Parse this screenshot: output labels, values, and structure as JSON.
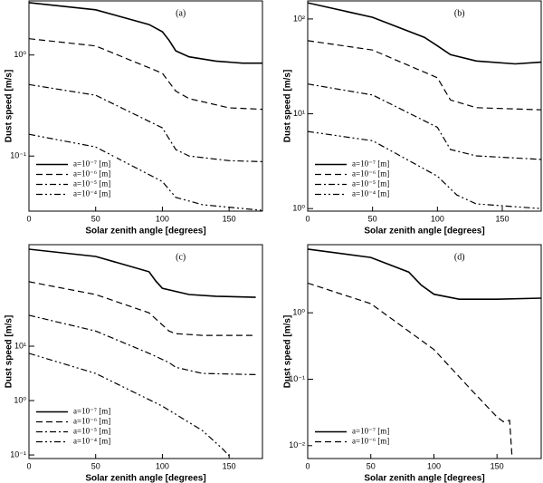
{
  "chart_data": [
    {
      "type": "line",
      "title": "(a)",
      "x_label": "Solar zenith angle [degrees]",
      "y_label": "Dust speed [m/s]",
      "log_y": true,
      "legend": "lower left",
      "xlim": [
        0,
        175
      ],
      "xticks": [
        0,
        50,
        100,
        150
      ],
      "ylim": [
        0.0285,
        3.43
      ],
      "yticks": [
        {
          "value": 1,
          "label": "10⁰"
        },
        {
          "value": 0.1,
          "label": "10⁻¹"
        }
      ],
      "series": [
        {
          "name": "a=10⁻⁷ [m]",
          "color": "#000",
          "dash": "solid",
          "x": [
            0,
            50,
            90,
            100,
            105,
            110,
            120,
            140,
            160,
            175
          ],
          "values": [
            3.3,
            2.8,
            2.0,
            1.7,
            1.4,
            1.1,
            0.96,
            0.87,
            0.83,
            0.83
          ]
        },
        {
          "name": "a=10⁻⁶ [m]",
          "color": "#000",
          "dash": "dashed",
          "x": [
            0,
            50,
            100,
            110,
            120,
            150,
            175
          ],
          "values": [
            1.45,
            1.23,
            0.66,
            0.44,
            0.37,
            0.3,
            0.29
          ]
        },
        {
          "name": "a=10⁻⁵ [m]",
          "color": "#000",
          "dash": "dashdot",
          "x": [
            0,
            50,
            100,
            110,
            120,
            150,
            175
          ],
          "values": [
            0.51,
            0.4,
            0.19,
            0.116,
            0.1,
            0.09,
            0.088
          ]
        },
        {
          "name": "a=10⁻⁴ [m]",
          "color": "#000",
          "dash": "dashdotdot",
          "x": [
            0,
            50,
            100,
            110,
            130,
            175
          ],
          "values": [
            0.164,
            0.123,
            0.056,
            0.039,
            0.033,
            0.029
          ]
        }
      ]
    },
    {
      "type": "line",
      "title": "(b)",
      "x_label": "Solar zenith angle [degrees]",
      "y_label": "Dust speed [m/s]",
      "log_y": true,
      "legend": "lower left",
      "xlim": [
        0,
        180
      ],
      "xticks": [
        0,
        50,
        100,
        150
      ],
      "ylim": [
        0.94,
        155
      ],
      "yticks": [
        {
          "value": 100,
          "label": "10²"
        },
        {
          "value": 10,
          "label": "10¹"
        },
        {
          "value": 1,
          "label": "10⁰"
        }
      ],
      "series": [
        {
          "name": "a=10⁻⁷ [m]",
          "color": "#000",
          "dash": "solid",
          "x": [
            0,
            50,
            90,
            100,
            110,
            130,
            160,
            180
          ],
          "values": [
            148,
            104,
            64,
            52,
            42,
            36,
            33.6,
            35
          ]
        },
        {
          "name": "a=10⁻⁶ [m]",
          "color": "#000",
          "dash": "dashed",
          "x": [
            0,
            50,
            100,
            110,
            130,
            180
          ],
          "values": [
            59,
            47,
            24,
            14,
            11.6,
            11
          ]
        },
        {
          "name": "a=10⁻⁵ [m]",
          "color": "#000",
          "dash": "dashdot",
          "x": [
            0,
            50,
            100,
            110,
            130,
            180
          ],
          "values": [
            20.6,
            15.8,
            7.2,
            4.2,
            3.6,
            3.3
          ]
        },
        {
          "name": "a=10⁻⁴ [m]",
          "color": "#000",
          "dash": "dashdotdot",
          "x": [
            0,
            50,
            100,
            115,
            130,
            180
          ],
          "values": [
            6.5,
            5.2,
            2.2,
            1.39,
            1.12,
            1.0
          ]
        }
      ]
    },
    {
      "type": "line",
      "title": "(c)",
      "x_label": "Solar zenith angle [degrees]",
      "y_label": "Dust speed [m/s]",
      "log_y": true,
      "legend": "lower left",
      "xlim": [
        0,
        175
      ],
      "xticks": [
        0,
        50,
        100,
        150
      ],
      "ylim": [
        0.086,
        735
      ],
      "yticks": [
        {
          "value": 10,
          "label": "10¹"
        },
        {
          "value": 1,
          "label": "10⁰"
        },
        {
          "value": 0.1,
          "label": "10⁻¹"
        }
      ],
      "series": [
        {
          "name": "a=10⁻⁷ [m]",
          "color": "#000",
          "dash": "solid",
          "x": [
            0,
            50,
            90,
            95,
            100,
            120,
            140,
            170
          ],
          "values": [
            607,
            446,
            233,
            158,
            116,
            89,
            83,
            79
          ]
        },
        {
          "name": "a=10⁻⁶ [m]",
          "color": "#000",
          "dash": "dashed",
          "x": [
            0,
            50,
            90,
            105,
            110,
            130,
            170
          ],
          "values": [
            153,
            89,
            41,
            19,
            17,
            15.8,
            15.8
          ]
        },
        {
          "name": "a=10⁻⁵ [m]",
          "color": "#000",
          "dash": "dashdot",
          "x": [
            0,
            50,
            90,
            105,
            110,
            130,
            170
          ],
          "values": [
            37,
            19,
            7.4,
            5.0,
            4.1,
            3.16,
            3.0
          ]
        },
        {
          "name": "a=10⁻⁴ [m]",
          "color": "#000",
          "dash": "dashdotdot",
          "x": [
            0,
            50,
            100,
            130,
            145,
            152
          ],
          "values": [
            7.4,
            3.16,
            0.79,
            0.28,
            0.13,
            0.086
          ]
        }
      ]
    },
    {
      "type": "line",
      "title": "(d)",
      "x_label": "Solar zenith angle [degrees]",
      "y_label": "Dust speed [m/s]",
      "log_y": true,
      "legend": "lower left",
      "xlim": [
        0,
        185
      ],
      "xticks": [
        0,
        50,
        100,
        150
      ],
      "ylim": [
        0.0064,
        10.6
      ],
      "yticks": [
        {
          "value": 1,
          "label": "10⁰"
        },
        {
          "value": 0.1,
          "label": "10⁻¹"
        },
        {
          "value": 0.01,
          "label": "10⁻²"
        }
      ],
      "series": [
        {
          "name": "a=10⁻⁷ [m]",
          "color": "#000",
          "dash": "solid",
          "x": [
            0,
            50,
            80,
            90,
            100,
            120,
            150,
            185
          ],
          "values": [
            9.1,
            6.8,
            4.1,
            2.6,
            1.9,
            1.6,
            1.6,
            1.66
          ]
        },
        {
          "name": "a=10⁻⁶ [m]",
          "color": "#000",
          "dash": "dashed",
          "x": [
            0,
            50,
            100,
            130,
            150,
            155,
            160,
            162
          ],
          "values": [
            2.8,
            1.37,
            0.28,
            0.068,
            0.027,
            0.023,
            0.024,
            0.0064
          ]
        }
      ]
    }
  ]
}
